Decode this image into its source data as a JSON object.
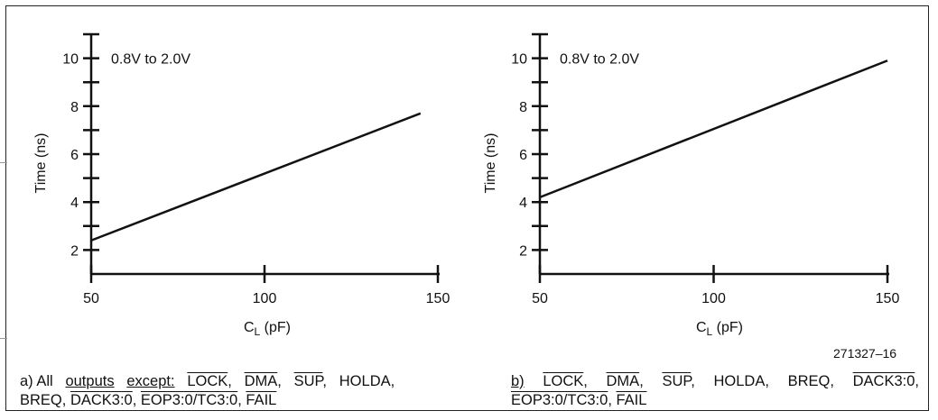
{
  "chart_data": [
    {
      "type": "line",
      "annotation": "0.8V to 2.0V",
      "xlabel_main": "C",
      "xlabel_sub": "L",
      "xlabel_unit": " (pF)",
      "ylabel": "Time (ns)",
      "xlim": [
        50,
        150
      ],
      "ylim": [
        1,
        11
      ],
      "xticks": [
        50,
        100,
        150
      ],
      "yticks": [
        2,
        4,
        6,
        8,
        10
      ],
      "series": [
        {
          "x": [
            50,
            145
          ],
          "y": [
            2.4,
            7.7
          ]
        }
      ]
    },
    {
      "type": "line",
      "annotation": "0.8V to 2.0V",
      "xlabel_main": "C",
      "xlabel_sub": "L",
      "xlabel_unit": " (pF)",
      "ylabel": "Time (ns)",
      "xlim": [
        50,
        150
      ],
      "ylim": [
        1,
        11
      ],
      "xticks": [
        50,
        100,
        150
      ],
      "yticks": [
        2,
        4,
        6,
        8,
        10
      ],
      "series": [
        {
          "x": [
            50,
            150
          ],
          "y": [
            4.2,
            9.9
          ]
        }
      ]
    }
  ],
  "figure_id": "271327–16",
  "captions": {
    "a": {
      "prefix": "a) All",
      "outputs": "outputs",
      "except": "except:",
      "lock": "LOCK",
      "dma": "DMA",
      "sup": "SUP",
      "holda": "HOLDA,",
      "breq": "BREQ,",
      "dack": "DACK3:0",
      "eop": "EOP3:0/TC3:0",
      "fail": "FAIL"
    },
    "b": {
      "prefix": "b)",
      "lock": "LOCK",
      "dma": "DMA",
      "sup": "SUP",
      "holda": "HOLDA,",
      "breq": "BREQ,",
      "dack": "DACK3:0",
      "eop": "EOP3:0/TC3:0",
      "fail": "FAIL"
    }
  }
}
